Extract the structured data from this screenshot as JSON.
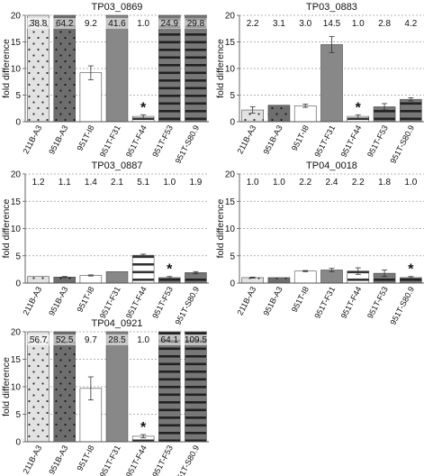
{
  "chart_data": [
    {
      "type": "bar",
      "title": "TP03_0869",
      "ylabel": "fold difference",
      "xlabel": "",
      "ylim": [
        0,
        20
      ],
      "yticks": [
        0,
        5,
        10,
        15,
        20
      ],
      "grid": true,
      "categories": [
        "211B-A3",
        "951B-A3",
        "951T-I8",
        "951T-F31",
        "951T-F44",
        "951T-F53",
        "951T-S80.9"
      ],
      "values": [
        38.8,
        64.2,
        9.2,
        41.6,
        1.0,
        24.9,
        29.8
      ],
      "value_labels": [
        "38.8",
        "64.2",
        "9.2",
        "41.6",
        "1.0",
        "24.9",
        "29.8"
      ],
      "errors": [
        null,
        null,
        1.3,
        null,
        0.3,
        null,
        null
      ],
      "significant": [
        "",
        "",
        "",
        "",
        "*",
        "",
        ""
      ]
    },
    {
      "type": "bar",
      "title": "TP03_0883",
      "ylabel": "fold difference",
      "xlabel": "",
      "ylim": [
        0,
        20
      ],
      "yticks": [
        0,
        5,
        10,
        15,
        20
      ],
      "grid": true,
      "categories": [
        "211B-A3",
        "951B-A3",
        "951T-I8",
        "951T-F31",
        "951T-F44",
        "951T-F53",
        "951T-S80.9"
      ],
      "values": [
        2.2,
        3.1,
        3.0,
        14.5,
        1.0,
        2.8,
        4.2
      ],
      "value_labels": [
        "2.2",
        "3.1",
        "3.0",
        "14.5",
        "1.0",
        "2.8",
        "4.2"
      ],
      "errors": [
        0.6,
        null,
        0.3,
        1.5,
        0.3,
        0.6,
        0.3
      ],
      "significant": [
        "",
        "",
        "",
        "",
        "*",
        "",
        ""
      ]
    },
    {
      "type": "bar",
      "title": "TP03_0887",
      "ylabel": "fold difference",
      "xlabel": "",
      "ylim": [
        0,
        20
      ],
      "yticks": [
        0,
        5,
        10,
        15,
        20
      ],
      "grid": true,
      "categories": [
        "211B-A3",
        "951B-A3",
        "951T-I8",
        "951T-F31",
        "951T-F44",
        "951T-F53",
        "951T-S80.9"
      ],
      "values": [
        1.2,
        1.1,
        1.4,
        2.1,
        5.1,
        1.0,
        1.9
      ],
      "value_labels": [
        "1.2",
        "1.1",
        "1.4",
        "2.1",
        "5.1",
        "1.0",
        "1.9"
      ],
      "errors": [
        null,
        0.1,
        0.1,
        null,
        0.2,
        0.2,
        0.2
      ],
      "significant": [
        "",
        "",
        "",
        "",
        "",
        "*",
        ""
      ]
    },
    {
      "type": "bar",
      "title": "TP04_0018",
      "ylabel": "fold difference",
      "xlabel": "",
      "ylim": [
        0,
        20
      ],
      "yticks": [
        0,
        5,
        10,
        15,
        20
      ],
      "grid": true,
      "categories": [
        "211B-A3",
        "951B-A3",
        "951T-I8",
        "951T-F31",
        "951T-F44",
        "951T-F53",
        "951T-S80.9"
      ],
      "values": [
        1.0,
        1.0,
        2.2,
        2.4,
        2.2,
        1.8,
        1.0
      ],
      "value_labels": [
        "1.0",
        "1.0",
        "2.2",
        "2.4",
        "2.2",
        "1.8",
        "1.0"
      ],
      "errors": [
        0.1,
        null,
        0.1,
        0.3,
        0.6,
        0.6,
        0.2
      ],
      "significant": [
        "",
        "",
        "",
        "",
        "",
        "",
        "*"
      ]
    },
    {
      "type": "bar",
      "title": "TP04_0921",
      "ylabel": "fold difference",
      "xlabel": "",
      "ylim": [
        0,
        20
      ],
      "yticks": [
        0,
        5,
        10,
        15,
        20
      ],
      "grid": true,
      "categories": [
        "211B-A3",
        "951B-A3",
        "951T-I8",
        "951T-F31",
        "951T-F44",
        "951T-F53",
        "951T-S80.9"
      ],
      "values": [
        56.7,
        52.5,
        9.7,
        28.5,
        1.0,
        64.1,
        109.5
      ],
      "value_labels": [
        "56.7",
        "52.5",
        "9.7",
        "28.5",
        "1.0",
        "64.1",
        "109.5"
      ],
      "errors": [
        null,
        null,
        2.1,
        null,
        0.3,
        null,
        null
      ],
      "significant": [
        "",
        "",
        "",
        "",
        "*",
        "",
        ""
      ]
    }
  ],
  "bar_styles": [
    {
      "fill": "#e2e2e2",
      "pattern": "dots",
      "pattern_color": "#333333"
    },
    {
      "fill": "#6e6e6e",
      "pattern": "dots",
      "pattern_color": "#1a1a1a"
    },
    {
      "fill": "#ffffff",
      "pattern": "none",
      "pattern_color": ""
    },
    {
      "fill": "#888888",
      "pattern": "none",
      "pattern_color": ""
    },
    {
      "fill": "#ffffff",
      "pattern": "hstripes",
      "pattern_color": "#333333"
    },
    {
      "fill": "#777777",
      "pattern": "hstripes",
      "pattern_color": "#222222"
    },
    {
      "fill": "#777777",
      "pattern": "hstripes",
      "pattern_color": "#222222"
    }
  ],
  "colors": {
    "axis": "#555555",
    "grid": "#9a9a9a",
    "text": "#111111",
    "errorbar": "#333333"
  }
}
